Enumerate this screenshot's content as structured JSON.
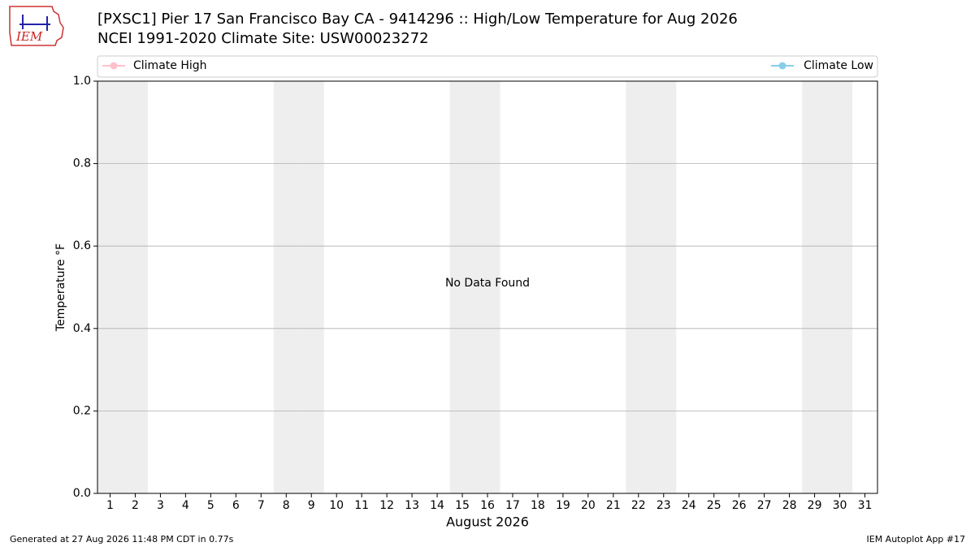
{
  "logo_text": "IEM",
  "chart_data": {
    "type": "line",
    "title": "[PXSC1] Pier 17  San Francisco Bay  CA - 9414296 :: High/Low Temperature for Aug 2026",
    "subtitle": "NCEI 1991-2020 Climate Site: USW00023272",
    "xlabel": "August 2026",
    "ylabel": "Temperature °F",
    "annotation": "No Data Found",
    "x": [
      1,
      2,
      3,
      4,
      5,
      6,
      7,
      8,
      9,
      10,
      11,
      12,
      13,
      14,
      15,
      16,
      17,
      18,
      19,
      20,
      21,
      22,
      23,
      24,
      25,
      26,
      27,
      28,
      29,
      30,
      31
    ],
    "series": [
      {
        "name": "Climate High",
        "color": "pink",
        "values": [
          null,
          null,
          null,
          null,
          null,
          null,
          null,
          null,
          null,
          null,
          null,
          null,
          null,
          null,
          null,
          null,
          null,
          null,
          null,
          null,
          null,
          null,
          null,
          null,
          null,
          null,
          null,
          null,
          null,
          null,
          null
        ]
      },
      {
        "name": "Climate Low",
        "color": "skyblue",
        "values": [
          null,
          null,
          null,
          null,
          null,
          null,
          null,
          null,
          null,
          null,
          null,
          null,
          null,
          null,
          null,
          null,
          null,
          null,
          null,
          null,
          null,
          null,
          null,
          null,
          null,
          null,
          null,
          null,
          null,
          null,
          null
        ]
      }
    ],
    "xlim": [
      0.5,
      31.5
    ],
    "xticks": [
      1,
      2,
      3,
      4,
      5,
      6,
      7,
      8,
      9,
      10,
      11,
      12,
      13,
      14,
      15,
      16,
      17,
      18,
      19,
      20,
      21,
      22,
      23,
      24,
      25,
      26,
      27,
      28,
      29,
      30,
      31
    ],
    "ylim": [
      0,
      1
    ],
    "yticks": [
      {
        "value": 0,
        "label": "0.0"
      },
      0.2,
      0.4,
      0.6,
      0.8,
      {
        "value": 1,
        "label": "1.0"
      }
    ],
    "grid": true,
    "weekend_shading": true,
    "legend": "top",
    "footer_left": "Generated at 27 Aug 2026 11:48 PM CDT in 0.77s",
    "footer_right": "IEM Autoplot App #17"
  }
}
